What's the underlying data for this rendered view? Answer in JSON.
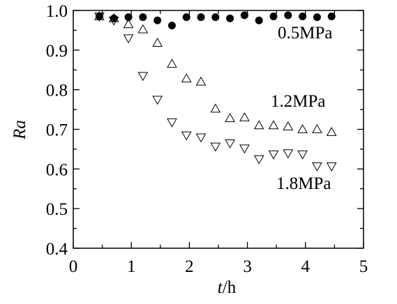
{
  "chart_data": {
    "type": "scatter",
    "title": "",
    "xlabel": {
      "var": "t",
      "unit": "/h"
    },
    "ylabel": "Ra",
    "xlim": [
      0,
      5
    ],
    "ylim": [
      0.4,
      1.0
    ],
    "xticks": [
      "0",
      "1",
      "2",
      "3",
      "4",
      "5"
    ],
    "yticks": [
      "0.4",
      "0.5",
      "0.6",
      "0.7",
      "0.8",
      "0.9",
      "1.0"
    ],
    "grid": false,
    "series": [
      {
        "name": "0.5MPa",
        "marker": "filled-circle",
        "color": "#000000",
        "x": [
          0.45,
          0.7,
          0.95,
          1.2,
          1.45,
          1.7,
          1.95,
          2.2,
          2.45,
          2.7,
          2.95,
          3.2,
          3.45,
          3.7,
          3.95,
          4.2,
          4.45
        ],
        "y": [
          0.985,
          0.98,
          0.983,
          0.983,
          0.975,
          0.962,
          0.983,
          0.983,
          0.983,
          0.98,
          0.988,
          0.975,
          0.985,
          0.988,
          0.985,
          0.983,
          0.985
        ]
      },
      {
        "name": "1.2MPa",
        "marker": "open-triangle-up",
        "color": "#000000",
        "x": [
          0.45,
          0.7,
          0.95,
          1.2,
          1.45,
          1.7,
          1.95,
          2.2,
          2.45,
          2.7,
          2.95,
          3.2,
          3.45,
          3.7,
          3.95,
          4.2,
          4.45
        ],
        "y": [
          0.985,
          0.98,
          0.965,
          0.952,
          0.918,
          0.865,
          0.828,
          0.82,
          0.752,
          0.728,
          0.73,
          0.71,
          0.71,
          0.707,
          0.7,
          0.7,
          0.693
        ]
      },
      {
        "name": "1.8MPa",
        "marker": "open-triangle-down",
        "color": "#000000",
        "x": [
          0.45,
          0.7,
          0.95,
          1.2,
          1.45,
          1.7,
          1.95,
          2.2,
          2.45,
          2.7,
          2.95,
          3.2,
          3.45,
          3.7,
          3.95,
          4.2,
          4.45
        ],
        "y": [
          0.985,
          0.975,
          0.93,
          0.835,
          0.775,
          0.718,
          0.685,
          0.68,
          0.657,
          0.665,
          0.652,
          0.625,
          0.637,
          0.64,
          0.637,
          0.607,
          0.607
        ]
      }
    ],
    "annotations": [
      {
        "text": "0.5MPa",
        "series": 0
      },
      {
        "text": "1.2MPa",
        "series": 1
      },
      {
        "text": "1.8MPa",
        "series": 2
      }
    ]
  }
}
